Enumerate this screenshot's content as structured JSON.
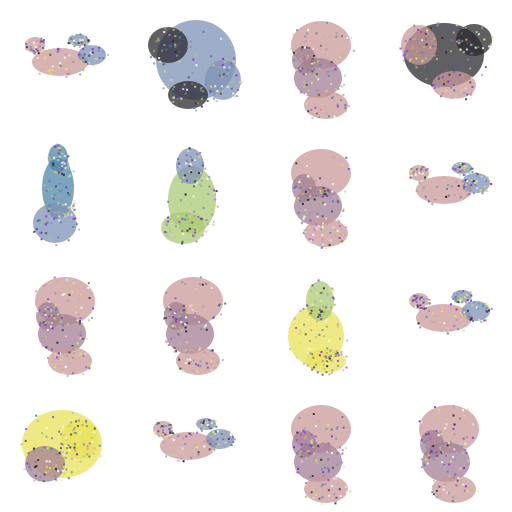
{
  "palette": {
    "background": "#ffffff",
    "pinkish": "#c9999b",
    "slate_blue": "#7f93b5",
    "dark": "#2b2a30",
    "teal_blue": "#4f86a8",
    "green": "#a9c977",
    "yellow": "#e8e25a",
    "mauve": "#a37f95"
  },
  "tiles": [
    {
      "style": "small-pink-blue"
    },
    {
      "style": "dark-slate"
    },
    {
      "style": "mauve-tall"
    },
    {
      "style": "black-mixed"
    },
    {
      "style": "teal-blob"
    },
    {
      "style": "green-blob"
    },
    {
      "style": "mauve-tall"
    },
    {
      "style": "small-pink-blue"
    },
    {
      "style": "mauve-tall"
    },
    {
      "style": "mauve-tall"
    },
    {
      "style": "yellow-green"
    },
    {
      "style": "small-pink-blue"
    },
    {
      "style": "yellow-square"
    },
    {
      "style": "small-pink-blue"
    },
    {
      "style": "mauve-tall"
    },
    {
      "style": "mauve-tall"
    }
  ]
}
